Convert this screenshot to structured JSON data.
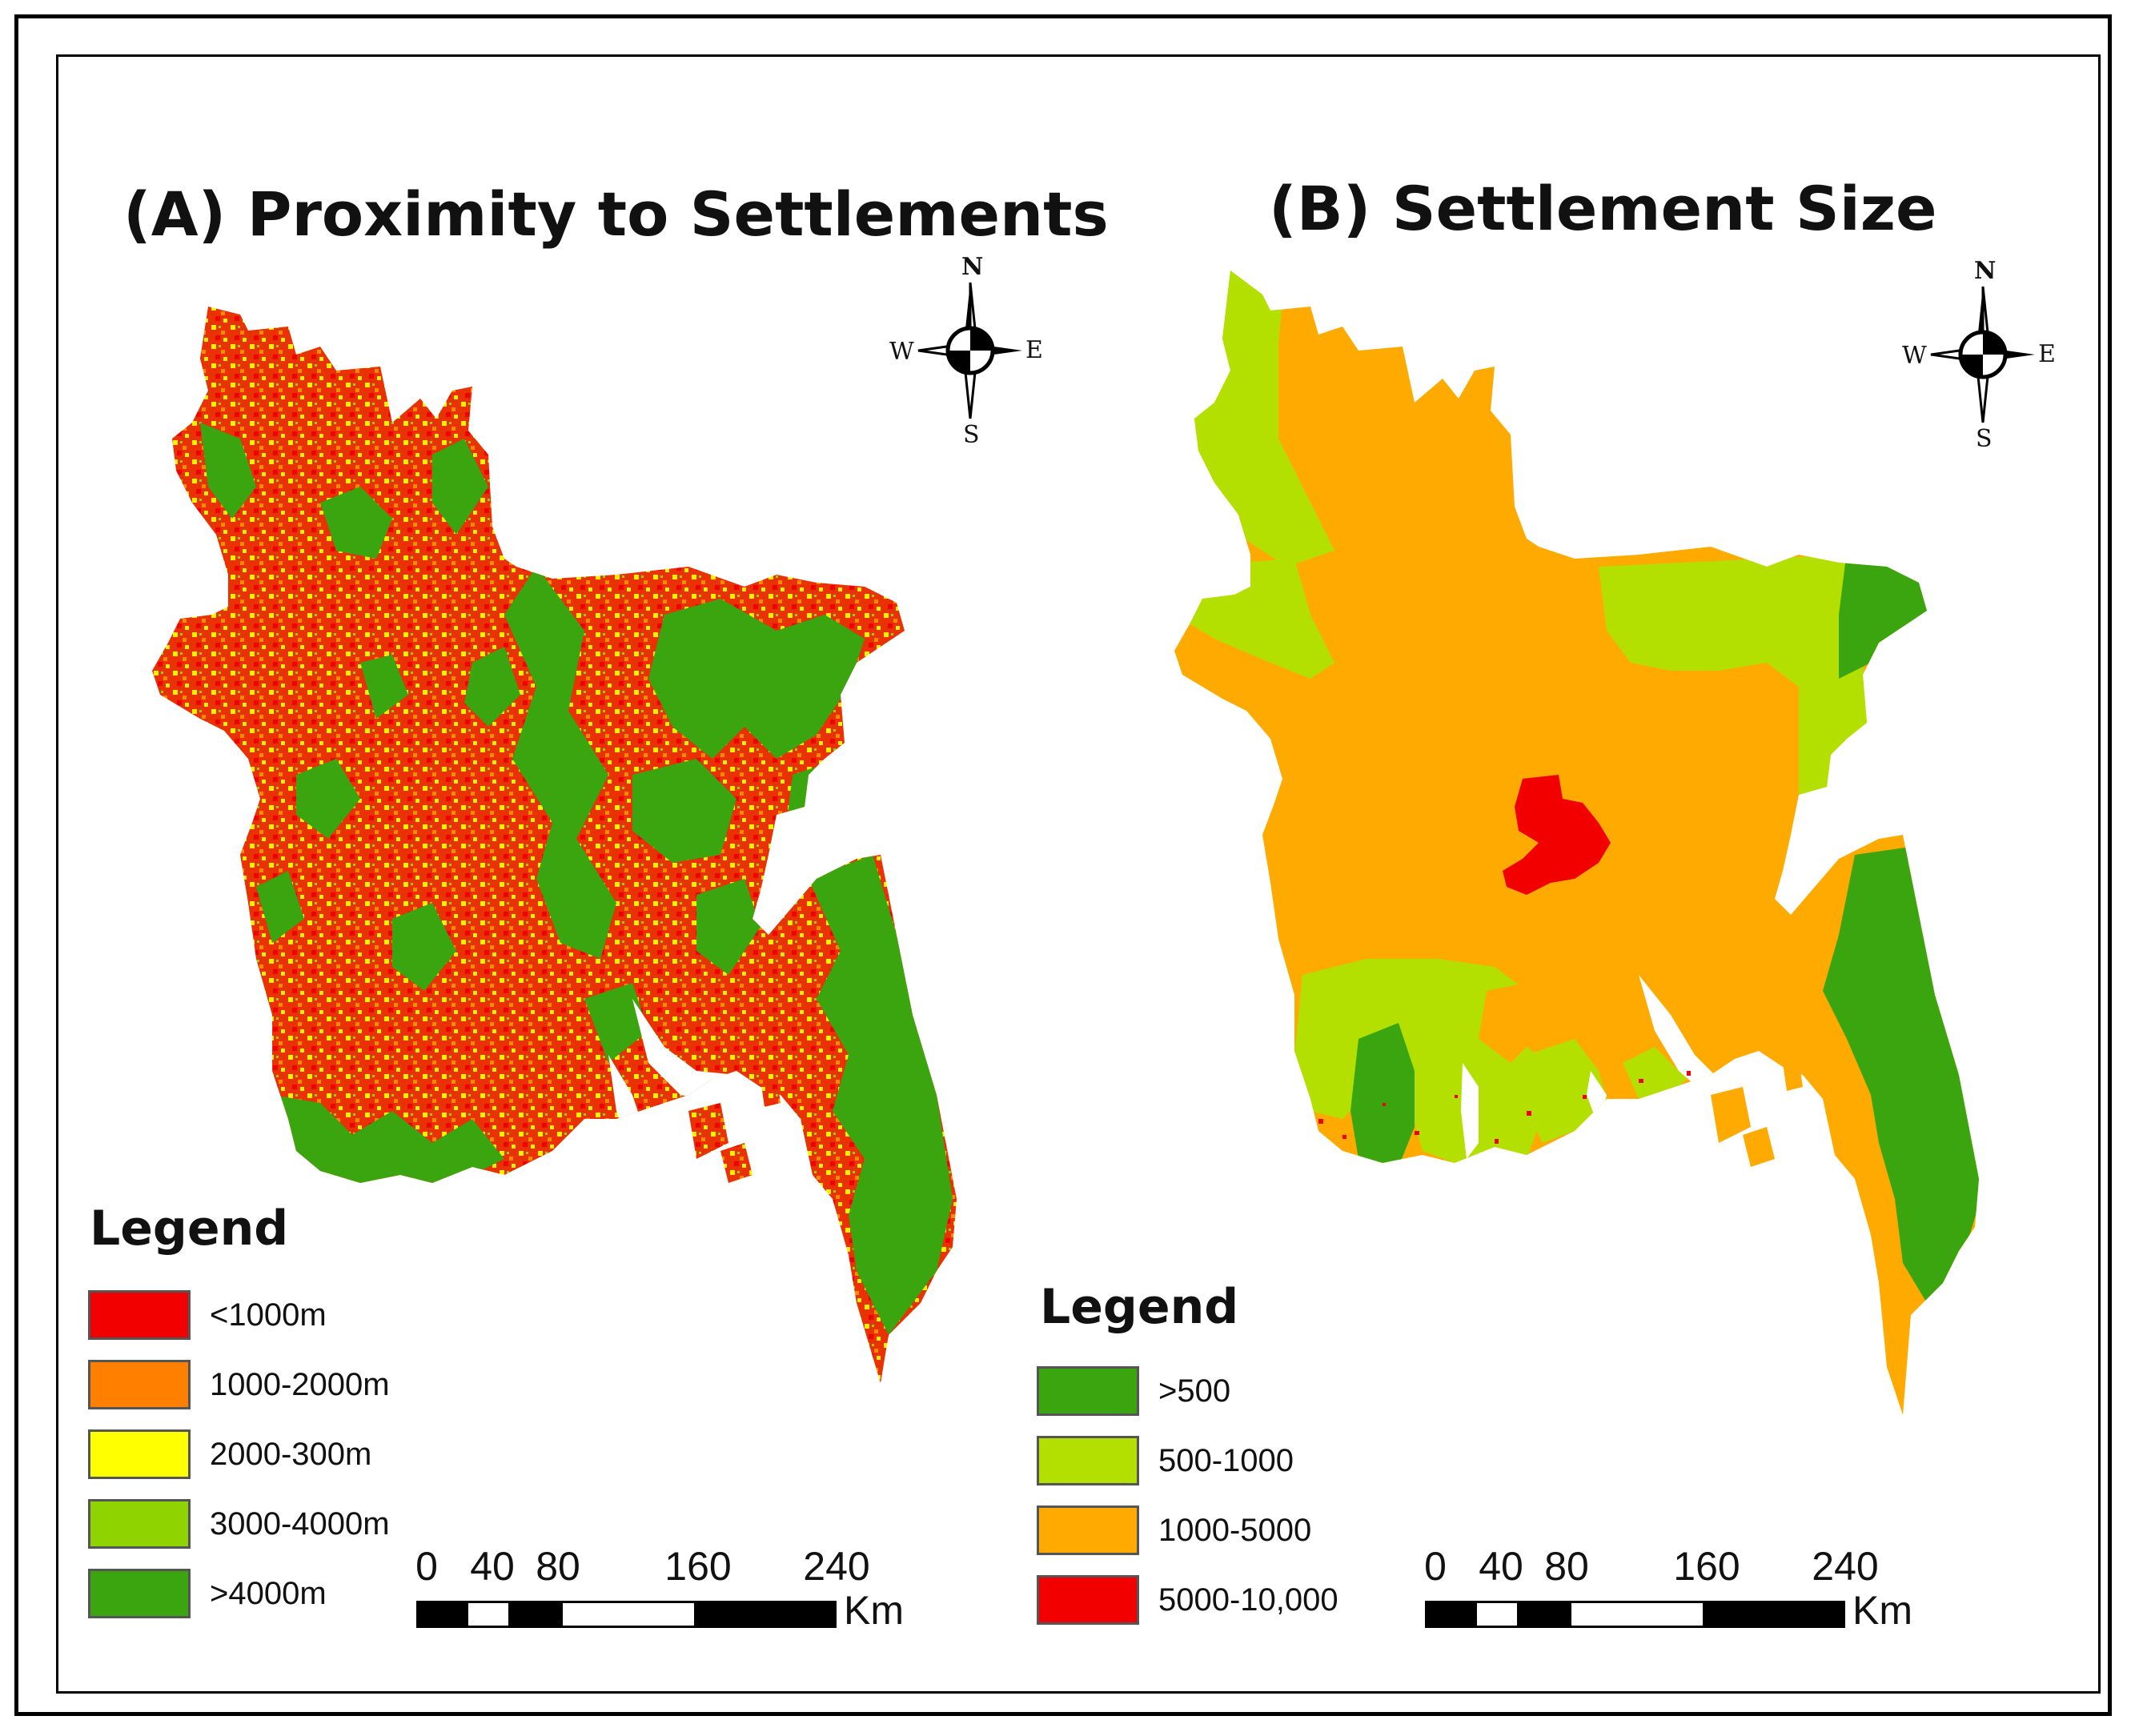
{
  "panels": [
    {
      "title": "(A) Proximity to Settlements",
      "legend": {
        "title": "Legend",
        "items": [
          {
            "label": "<1000m",
            "color": "#f20000"
          },
          {
            "label": "1000-2000m",
            "color": "#ff7f00"
          },
          {
            "label": "2000-300m",
            "color": "#ffff00"
          },
          {
            "label": "3000-4000m",
            "color": "#8fd400"
          },
          {
            "label": ">4000m",
            "color": "#3aa50e"
          }
        ]
      },
      "compass": {
        "n": "N",
        "s": "S",
        "e": "E",
        "w": "W"
      },
      "scalebar": {
        "ticks": [
          "0",
          "40",
          "80",
          "160",
          "240"
        ],
        "unit": "Km"
      }
    },
    {
      "title": "(B) Settlement Size",
      "legend": {
        "title": "Legend",
        "items": [
          {
            "label": ">500",
            "color": "#3aa50e"
          },
          {
            "label": "500-1000",
            "color": "#b3e000"
          },
          {
            "label": "1000-5000",
            "color": "#ffaa00"
          },
          {
            "label": "5000-10,000",
            "color": "#f20000"
          }
        ]
      },
      "compass": {
        "n": "N",
        "s": "S",
        "e": "E",
        "w": "W"
      },
      "scalebar": {
        "ticks": [
          "0",
          "40",
          "80",
          "160",
          "240"
        ],
        "unit": "Km"
      }
    }
  ]
}
